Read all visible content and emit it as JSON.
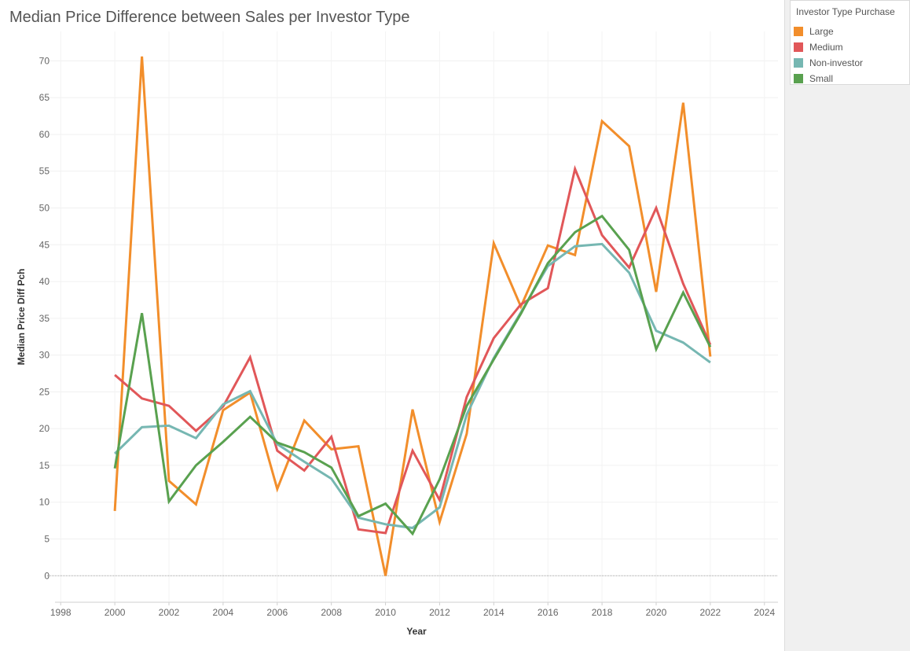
{
  "title": "Median Price Difference between Sales per Investor Type",
  "legend": {
    "title": "Investor Type Purchase"
  },
  "chart_data": {
    "type": "line",
    "title": "Median Price Difference between Sales per Investor Type",
    "xlabel": "Year",
    "ylabel": "Median Price Diff Pch",
    "xlim": [
      1997.5,
      2024.5
    ],
    "ylim": [
      -3.5,
      74
    ],
    "xticks": [
      1998,
      2000,
      2002,
      2004,
      2006,
      2008,
      2010,
      2012,
      2014,
      2016,
      2018,
      2020,
      2022,
      2024
    ],
    "yticks": [
      0,
      5,
      10,
      15,
      20,
      25,
      30,
      35,
      40,
      45,
      50,
      55,
      60,
      65,
      70
    ],
    "grid": true,
    "legend_position": "top-right",
    "x": [
      2000,
      2001,
      2002,
      2003,
      2004,
      2005,
      2006,
      2007,
      2008,
      2009,
      2010,
      2011,
      2012,
      2013,
      2014,
      2015,
      2016,
      2017,
      2018,
      2019,
      2020,
      2021,
      2022
    ],
    "series": [
      {
        "name": "Large",
        "color": "#f28e2b",
        "values": [
          8.8,
          70.6,
          12.9,
          9.7,
          22.5,
          24.9,
          11.8,
          21.1,
          17.2,
          17.6,
          0.0,
          22.6,
          7.3,
          19.3,
          45.2,
          36.6,
          44.9,
          43.6,
          61.8,
          58.4,
          38.6,
          64.3,
          29.8
        ]
      },
      {
        "name": "Medium",
        "color": "#e15759",
        "values": [
          27.3,
          24.1,
          23.1,
          19.7,
          23.0,
          29.7,
          17.0,
          14.3,
          18.9,
          6.3,
          5.8,
          17.0,
          10.3,
          24.3,
          32.3,
          36.9,
          39.1,
          55.3,
          46.3,
          41.9,
          50.0,
          39.7,
          31.4
        ]
      },
      {
        "name": "Non-investor",
        "color": "#76b7b2",
        "values": [
          16.6,
          20.2,
          20.4,
          18.7,
          23.3,
          25.1,
          17.9,
          15.5,
          13.2,
          7.9,
          7.0,
          6.5,
          9.3,
          21.9,
          29.6,
          35.8,
          42.1,
          44.8,
          45.1,
          41.2,
          33.3,
          31.7,
          29.0
        ]
      },
      {
        "name": "Small",
        "color": "#59a14f",
        "values": [
          14.6,
          35.7,
          10.1,
          15.0,
          18.2,
          21.6,
          18.1,
          16.8,
          14.7,
          8.1,
          9.8,
          5.7,
          13.1,
          23.1,
          29.4,
          35.6,
          42.5,
          46.7,
          48.9,
          44.3,
          30.8,
          38.5,
          31.1
        ]
      }
    ]
  }
}
